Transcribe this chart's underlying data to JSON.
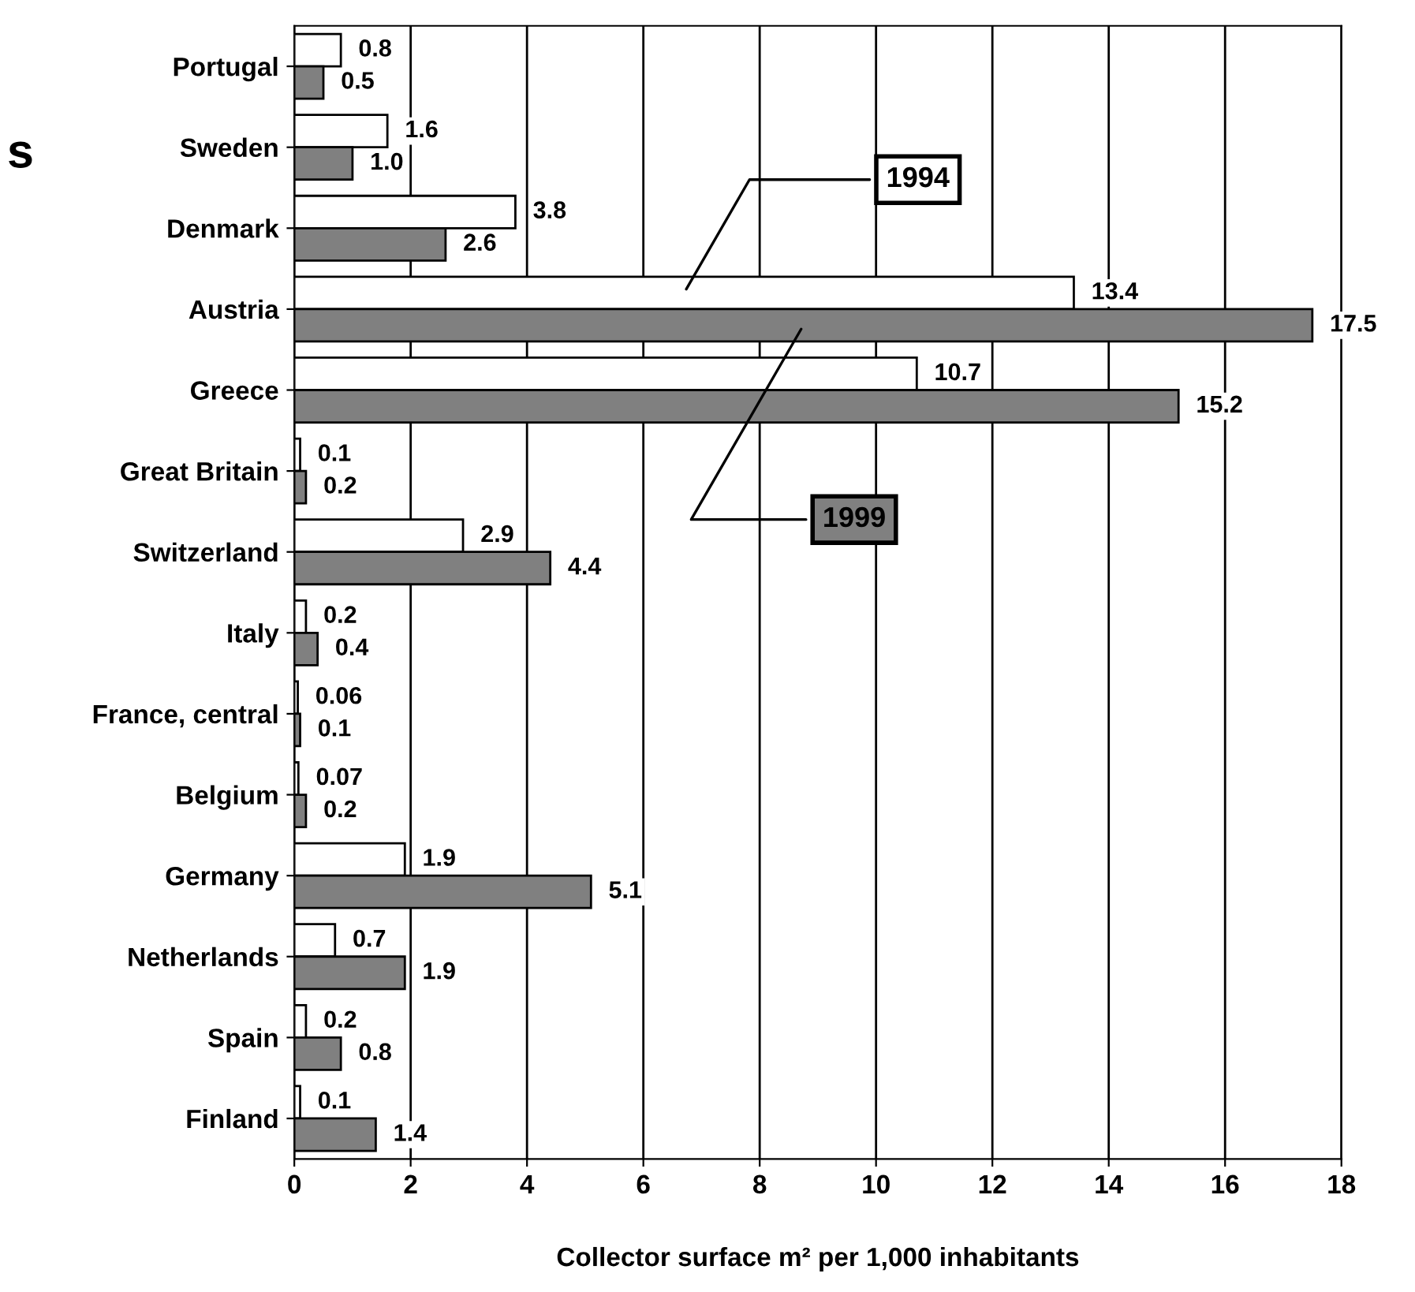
{
  "chart_data": {
    "type": "bar",
    "orientation": "horizontal",
    "xlabel": "Collector surface m² per 1,000 inhabitants",
    "categories": [
      "Portugal",
      "Sweden",
      "Denmark",
      "Austria",
      "Greece",
      "Great Britain",
      "Switzerland",
      "Italy",
      "France, central",
      "Belgium",
      "Germany",
      "Netherlands",
      "Spain",
      "Finland"
    ],
    "series": [
      {
        "name": "1994",
        "color": "#ffffff",
        "values": [
          0.8,
          1.6,
          3.8,
          13.4,
          10.7,
          0.1,
          2.9,
          0.2,
          0.06,
          0.07,
          1.9,
          0.7,
          0.2,
          0.1
        ],
        "value_labels": [
          "0.8",
          "1.6",
          "3.8",
          "13.4",
          "10.7",
          "0.1",
          "2.9",
          "0.2",
          "0.06",
          "0.07",
          "1.9",
          "0.7",
          "0.2",
          "0.1"
        ]
      },
      {
        "name": "1999",
        "color": "#808080",
        "values": [
          0.5,
          1.0,
          2.6,
          17.5,
          15.2,
          0.2,
          4.4,
          0.4,
          0.1,
          0.2,
          5.1,
          1.9,
          0.8,
          1.4
        ],
        "value_labels": [
          "0.5",
          "1.0",
          "2.6",
          "17.5",
          "15.2",
          "0.2",
          "4.4",
          "0.4",
          "0.1",
          "0.2",
          "5.1",
          "1.9",
          "0.8",
          "1.4"
        ]
      }
    ],
    "xlim": [
      0,
      18
    ],
    "xticks": [
      0,
      2,
      4,
      6,
      8,
      10,
      12,
      14,
      16,
      18
    ],
    "grid": "x",
    "legend": false,
    "annotations": [
      "s"
    ]
  }
}
